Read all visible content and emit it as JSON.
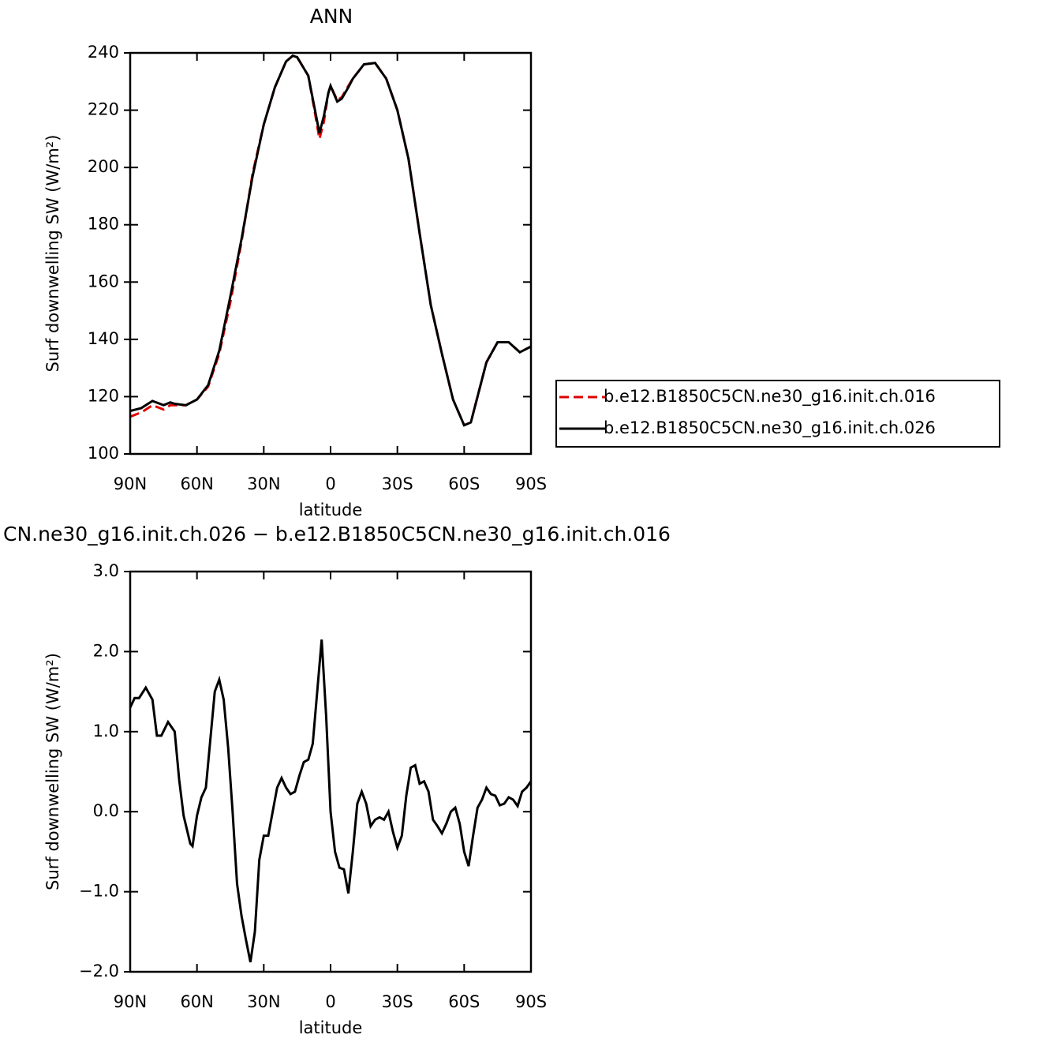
{
  "chart_data": [
    {
      "type": "line",
      "title": "ANN",
      "xlabel": "latitude",
      "ylabel": "Surf downwelling SW (W/m²)",
      "x": [
        90,
        85,
        80,
        75,
        72,
        70,
        65,
        60,
        55,
        50,
        45,
        40,
        35,
        30,
        25,
        20,
        17,
        15,
        10,
        7,
        5,
        3,
        1,
        0,
        -3,
        -5,
        -8,
        -10,
        -15,
        -20,
        -25,
        -30,
        -35,
        -40,
        -45,
        -50,
        -55,
        -60,
        -63,
        -65,
        -70,
        -75,
        -80,
        -85,
        -90
      ],
      "series": [
        {
          "name": "b.e12.B1850C5CN.ne30_g16.init.ch.016",
          "color": "#e00000",
          "style": "dashed",
          "values": [
            113,
            114.5,
            117,
            115.5,
            117,
            117,
            117,
            119,
            123.5,
            135,
            153,
            174,
            198,
            215,
            228,
            237,
            239,
            238.5,
            232,
            219,
            210,
            216,
            226,
            228.5,
            223.5,
            224.5,
            228.5,
            231,
            236,
            236.5,
            231,
            220,
            203,
            177,
            152,
            135,
            119,
            110,
            111,
            117,
            132,
            139,
            139,
            135.5,
            137.5
          ]
        },
        {
          "name": "b.e12.B1850C5CN.ne30_g16.init.ch.026",
          "color": "#000000",
          "style": "solid",
          "values": [
            115,
            116,
            118.5,
            117,
            118,
            117.5,
            117,
            119,
            124,
            136,
            155,
            175,
            197,
            215,
            228,
            237,
            239,
            238.5,
            232,
            220,
            212,
            218,
            226,
            228.5,
            223,
            224,
            228,
            231,
            236,
            236.5,
            231,
            220,
            203,
            177,
            152,
            135,
            119,
            110,
            111,
            117,
            132,
            139,
            139,
            135.5,
            137.5
          ]
        }
      ],
      "xlim": [
        90,
        -90
      ],
      "xticks": [
        {
          "value": 90,
          "label": "90N"
        },
        {
          "value": 60,
          "label": "60N"
        },
        {
          "value": 30,
          "label": "30N"
        },
        0,
        {
          "value": -30,
          "label": "30S"
        },
        {
          "value": -60,
          "label": "60S"
        },
        {
          "value": -90,
          "label": "90S"
        }
      ],
      "ylim": [
        100,
        240
      ],
      "yticks": [
        100,
        120,
        140,
        160,
        180,
        200,
        220,
        240
      ],
      "legend": "right"
    },
    {
      "type": "line",
      "title": "CN.ne30_g16.init.ch.026 − b.e12.B1850C5CN.ne30_g16.init.ch.016",
      "xlabel": "latitude",
      "ylabel": "Surf downwelling SW (W/m²)",
      "x": [
        90,
        88,
        86,
        83,
        80,
        78,
        76,
        73,
        70,
        68,
        66,
        63,
        62,
        60,
        58,
        56,
        54,
        52,
        50,
        48,
        46,
        44,
        42,
        40,
        38,
        36,
        34,
        32,
        30,
        28,
        26,
        24,
        22,
        20,
        18,
        16,
        14,
        12,
        10,
        8,
        6,
        4,
        2,
        0,
        -2,
        -4,
        -6,
        -8,
        -10,
        -12,
        -14,
        -16,
        -18,
        -20,
        -22,
        -24,
        -26,
        -28,
        -30,
        -32,
        -34,
        -36,
        -38,
        -40,
        -42,
        -44,
        -46,
        -48,
        -50,
        -52,
        -54,
        -56,
        -58,
        -60,
        -62,
        -64,
        -66,
        -68,
        -70,
        -72,
        -74,
        -76,
        -78,
        -80,
        -82,
        -84,
        -86,
        -88,
        -90
      ],
      "series": [
        {
          "color": "#000000",
          "style": "solid",
          "values": [
            1.3,
            1.42,
            1.42,
            1.55,
            1.4,
            0.95,
            0.95,
            1.12,
            1.0,
            0.4,
            -0.05,
            -0.4,
            -0.43,
            -0.05,
            0.18,
            0.3,
            0.9,
            1.5,
            1.65,
            1.4,
            0.8,
            0.0,
            -0.9,
            -1.3,
            -1.6,
            -1.88,
            -1.5,
            -0.6,
            -0.3,
            -0.3,
            0.0,
            0.3,
            0.42,
            0.3,
            0.22,
            0.25,
            0.45,
            0.62,
            0.65,
            0.85,
            1.5,
            2.15,
            1.2,
            0.0,
            -0.5,
            -0.7,
            -0.72,
            -1.02,
            -0.5,
            0.1,
            0.25,
            0.1,
            -0.18,
            -0.1,
            -0.07,
            -0.1,
            0.0,
            -0.25,
            -0.45,
            -0.3,
            0.2,
            0.55,
            0.58,
            0.35,
            0.38,
            0.25,
            -0.1,
            -0.18,
            -0.27,
            -0.15,
            0.0,
            0.05,
            -0.15,
            -0.5,
            -0.68,
            -0.3,
            0.05,
            0.15,
            0.3,
            0.22,
            0.2,
            0.08,
            0.1,
            0.18,
            0.15,
            0.07,
            0.25,
            0.3,
            0.38
          ]
        }
      ],
      "xlim": [
        90,
        -90
      ],
      "xticks": [
        {
          "value": 90,
          "label": "90N"
        },
        {
          "value": 60,
          "label": "60N"
        },
        {
          "value": 30,
          "label": "30N"
        },
        0,
        {
          "value": -30,
          "label": "30S"
        },
        {
          "value": -60,
          "label": "60S"
        },
        {
          "value": -90,
          "label": "90S"
        }
      ],
      "ylim": [
        -2,
        3
      ],
      "yticks": [
        {
          "value": -2,
          "label": "−2.0"
        },
        {
          "value": -1,
          "label": "−1.0"
        },
        {
          "value": 0,
          "label": "0.0"
        },
        {
          "value": 1,
          "label": "1.0"
        },
        {
          "value": 2,
          "label": "2.0"
        },
        {
          "value": 3,
          "label": "3.0"
        }
      ]
    }
  ]
}
